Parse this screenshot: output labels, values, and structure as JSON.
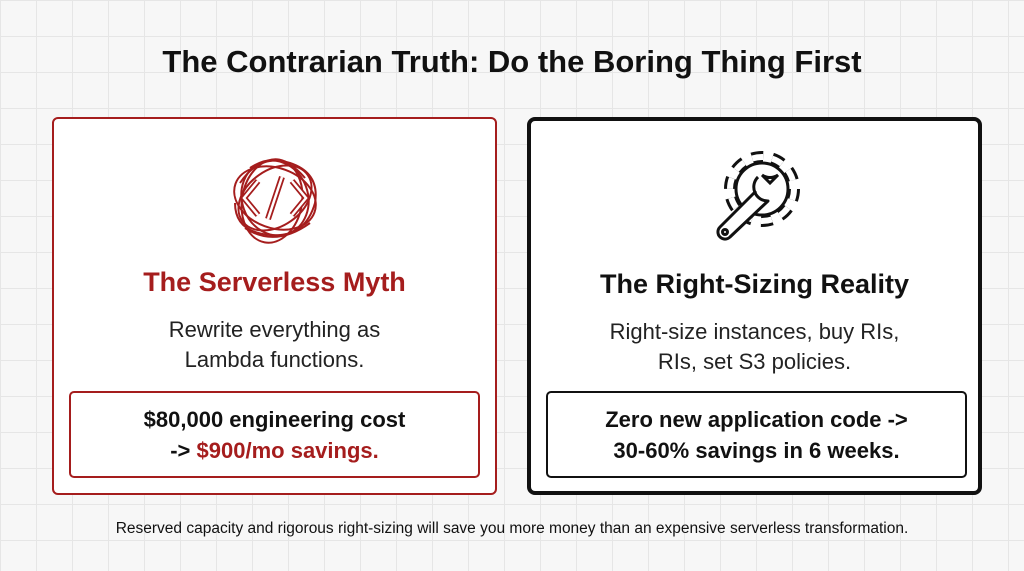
{
  "title": "The Contrarian Truth: Do the Boring Thing First",
  "left_card": {
    "heading": "The Serverless Myth",
    "body_lines": [
      "Rewrite everything as",
      "Lambda functions."
    ],
    "callout": {
      "line1": "$80,000 engineering cost",
      "line2_prefix": "->",
      "line2_highlight": "$900/mo savings."
    }
  },
  "right_card": {
    "heading": "The Right-Sizing Reality",
    "body_lines": [
      "Right-size instances, buy RIs,",
      "RIs, set S3 policies."
    ],
    "callout": {
      "line1": "Zero new application code ->",
      "line2": "30-60% savings in 6 weeks."
    }
  },
  "footer": "Reserved capacity and rigorous right-sizing will save you more money than an expensive serverless transformation."
}
